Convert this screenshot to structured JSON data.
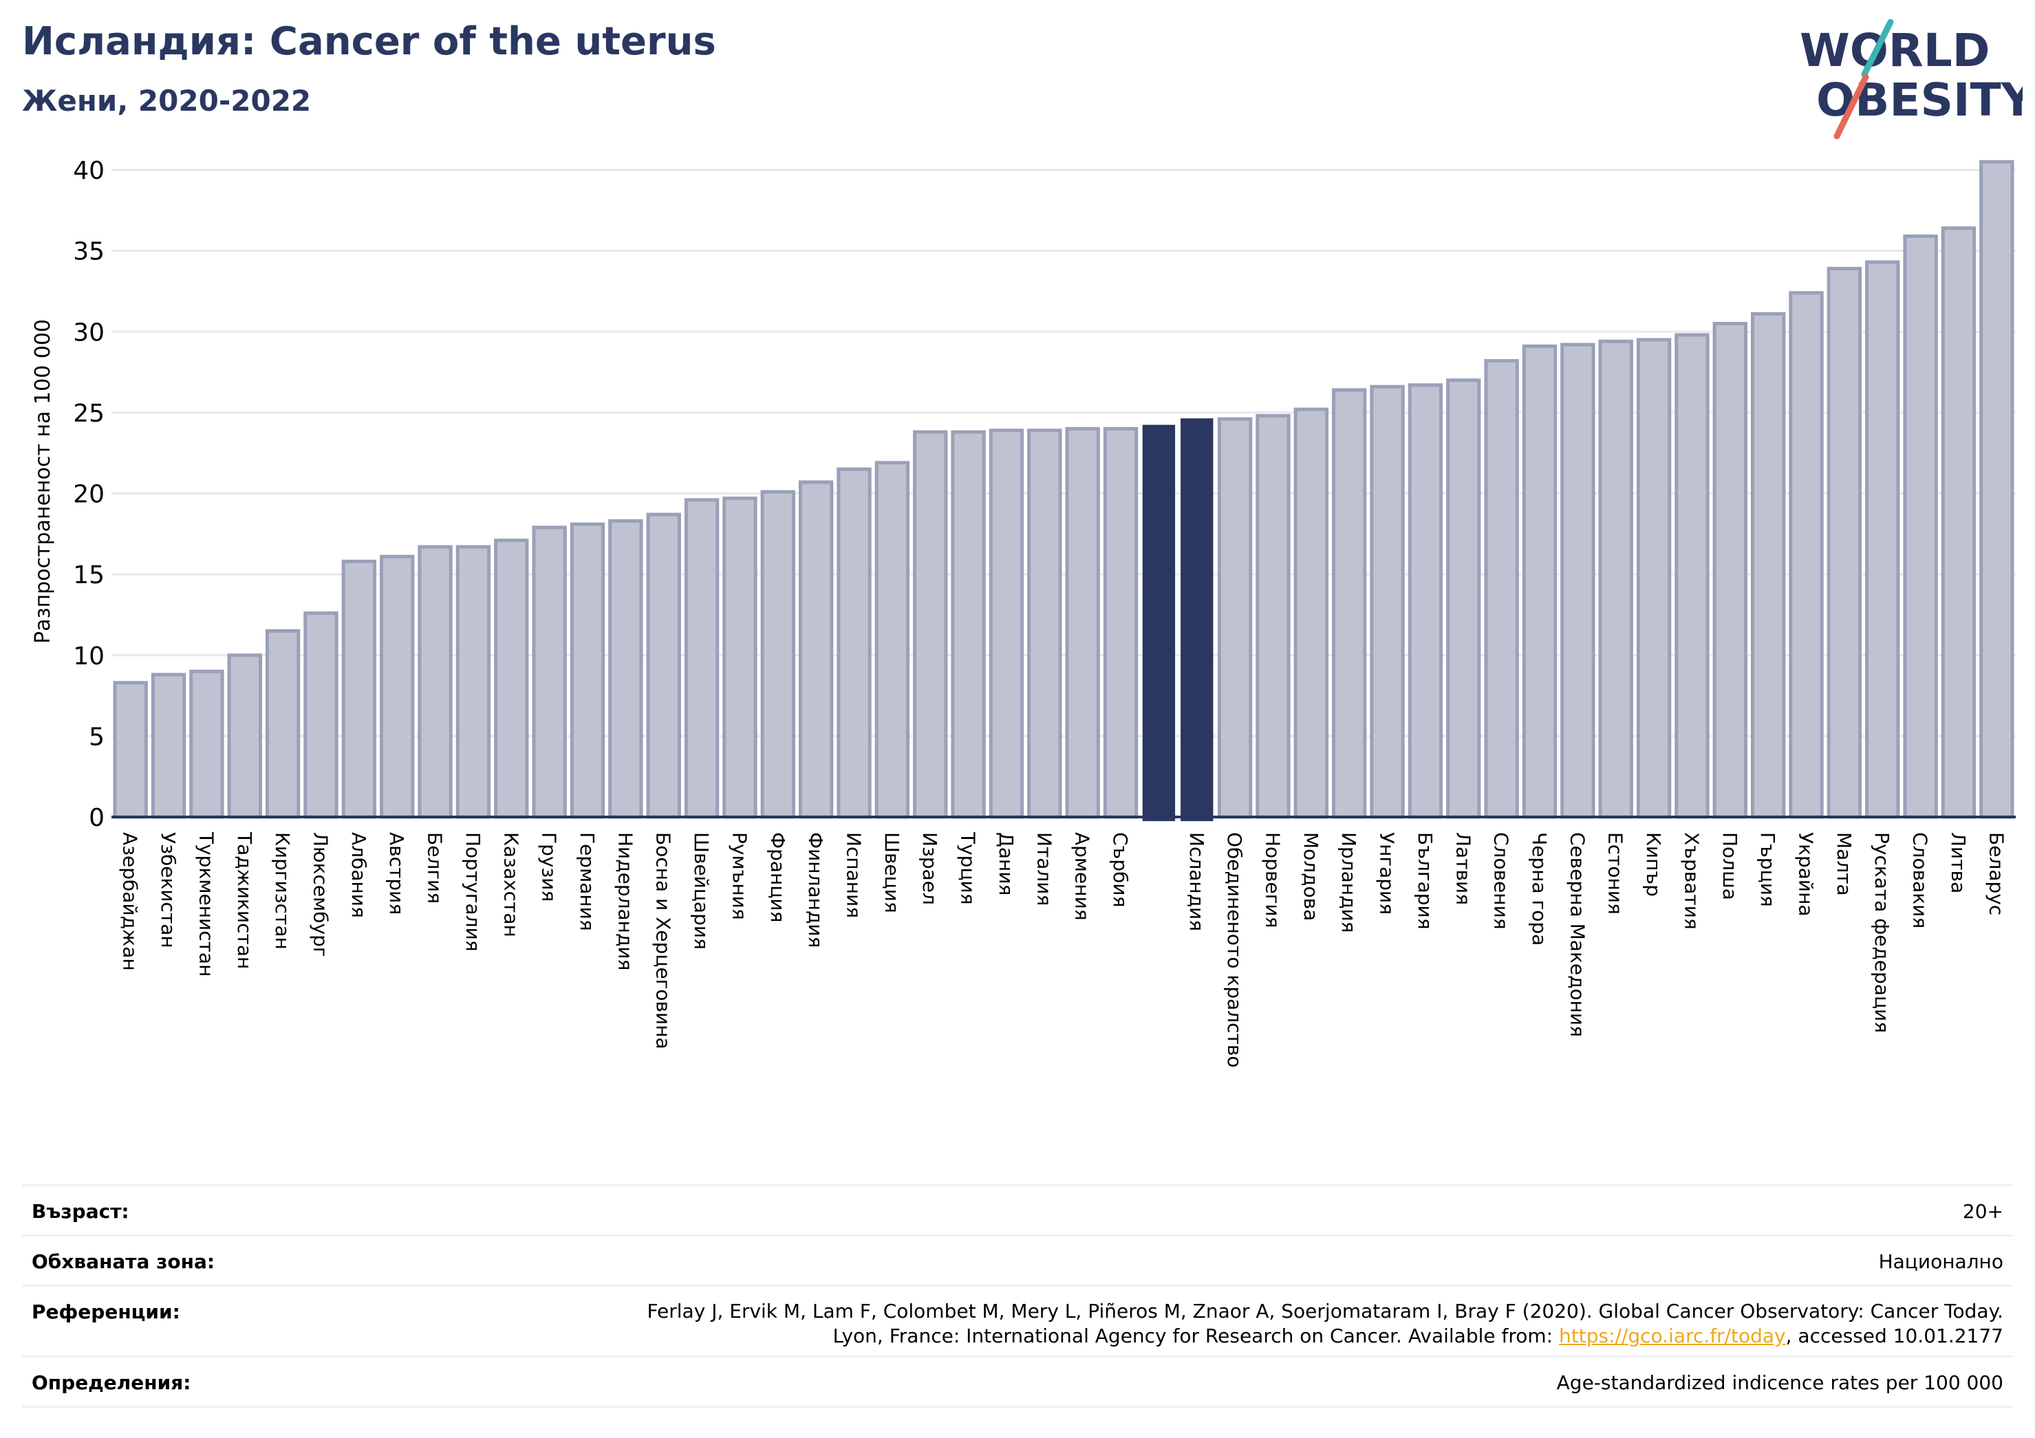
{
  "header": {
    "title": "Исландия: Cancer of the uterus",
    "subtitle": "Жени, 2020-2022"
  },
  "logo": {
    "line1": "WORLD",
    "line2": "OBESITY"
  },
  "colors": {
    "bar": "#bfc3d1",
    "bar_stroke": "#9aa0b8",
    "highlight": "#2a3761",
    "grid": "#e6e8ee",
    "axis": "#2a3761"
  },
  "chart_data": {
    "type": "bar",
    "ylabel": "Разпространеност  на 100 000",
    "ylim": [
      0,
      42
    ],
    "yticks": [
      0,
      5,
      10,
      15,
      20,
      25,
      30,
      35,
      40
    ],
    "grid": true,
    "highlight": [
      "",
      "Исландия"
    ],
    "categories": [
      "Азербайджан",
      "Узбекистан",
      "Туркменистан",
      "Таджикистан",
      "Киргизстан",
      "Люксембург",
      "Албания",
      "Австрия",
      "Белгия",
      "Португалия",
      "Казахстан",
      "Грузия",
      "Германия",
      "Нидерландия",
      "Босна и Херцеговина",
      "Швейцария",
      "Румъния",
      "Франция",
      "Финландия",
      "Испания",
      "Швеция",
      "Израел",
      "Турция",
      "Дания",
      "Италия",
      "Армения",
      "Сърбия",
      "",
      "Исландия",
      "Обединеното кралство",
      "Норвегия",
      "Молдова",
      "Ирландия",
      "Унгария",
      "България",
      "Латвия",
      "Словения",
      "Черна гора",
      "Северна Македония",
      "Естония",
      "Кипър",
      "Хърватия",
      "Полша",
      "Гърция",
      "Украйна",
      "Малта",
      "Руската федерация",
      "Словакия",
      "Литва",
      "Беларус"
    ],
    "values": [
      8.3,
      8.8,
      9.0,
      10.0,
      11.5,
      12.6,
      15.8,
      16.1,
      16.7,
      16.7,
      17.1,
      17.9,
      18.1,
      18.3,
      18.7,
      19.6,
      19.7,
      20.1,
      20.7,
      21.5,
      21.9,
      23.8,
      23.8,
      23.9,
      23.9,
      24.0,
      24.0,
      24.2,
      24.6,
      24.6,
      24.8,
      25.2,
      26.4,
      26.6,
      26.7,
      27.0,
      28.2,
      29.1,
      29.2,
      29.4,
      29.5,
      29.8,
      30.5,
      31.1,
      32.4,
      33.9,
      34.3,
      35.9,
      36.4,
      40.5
    ]
  },
  "info": {
    "age_label": "Възраст:",
    "age_value": "20+",
    "area_label": "Обхваната зона:",
    "area_value": "Национално",
    "ref_label": "Референции:",
    "ref_line1": "Ferlay J, Ervik M, Lam F, Colombet M, Mery L, Piñeros M, Znaor A, Soerjomataram I, Bray F (2020). Global Cancer Observatory: Cancer Today.",
    "ref_line2_pre": "Lyon, France: International Agency for Research on Cancer. Available from: ",
    "ref_link": "https://gco.iarc.fr/today",
    "ref_line2_post": ", accessed 10.01.2177",
    "def_label": "Определения:",
    "def_value": "Age-standardized indicence rates per 100 000"
  }
}
